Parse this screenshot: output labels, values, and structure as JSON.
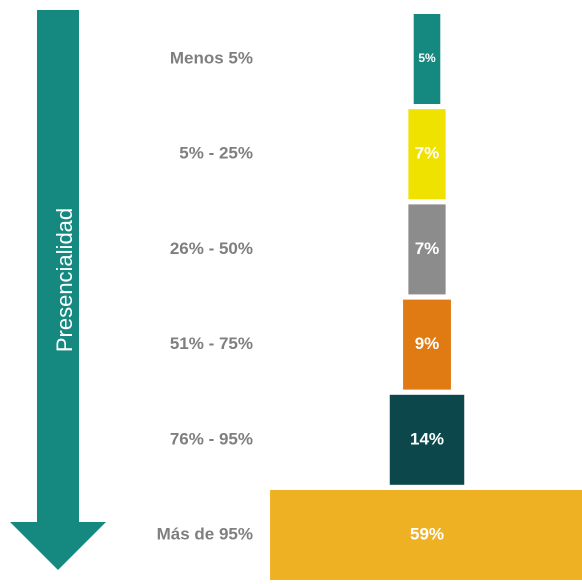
{
  "chart_data": {
    "type": "funnel",
    "axis_label": "Presencialidad",
    "categories": [
      "Menos 5%",
      "5% - 25%",
      "26% - 50%",
      "51% - 75%",
      "76% - 95%",
      "Más de 95%"
    ],
    "values": [
      5,
      7,
      7,
      9,
      14,
      59
    ],
    "value_labels": [
      "5%",
      "7%",
      "7%",
      "9%",
      "14%",
      "59%"
    ],
    "colors": [
      "#15897f",
      "#efe200",
      "#8c8c8c",
      "#e07a12",
      "#0c474c",
      "#efb124"
    ]
  }
}
